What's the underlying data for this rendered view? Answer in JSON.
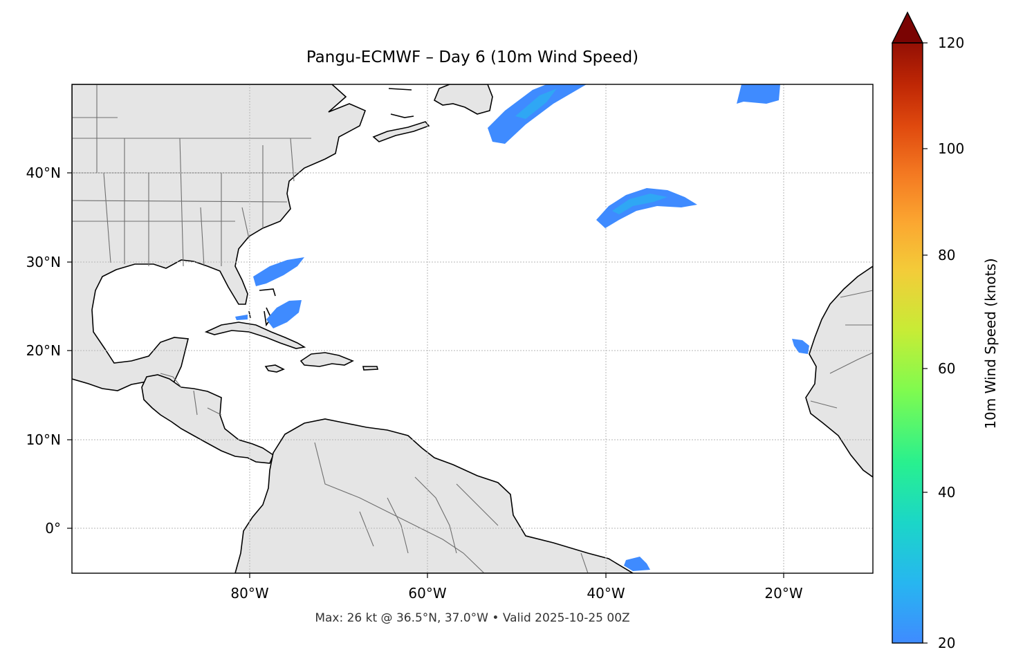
{
  "title": "Pangu-ECMWF – Day 6 (10m Wind Speed)",
  "footnote": "Max: 26 kt @ 36.5°N, 37.0°W • Valid 2025-10-25 00Z",
  "x_ticks": [
    "80°W",
    "60°W",
    "40°W",
    "20°W"
  ],
  "y_ticks": [
    "40°N",
    "30°N",
    "20°N",
    "10°N",
    "0°"
  ],
  "colorbar": {
    "label": "10m Wind Speed (knots)",
    "ticks": [
      "120",
      "100",
      "80",
      "60",
      "40",
      "20"
    ],
    "min": 20,
    "max": 120,
    "extend": "max",
    "colors": [
      "#3f8bff",
      "#27b6f0",
      "#1bd6c8",
      "#28f08f",
      "#7ffb4f",
      "#c7ec36",
      "#f3cc39",
      "#fba731",
      "#f47a22",
      "#e04a0f",
      "#bf2705",
      "#941005",
      "#7a0403"
    ]
  },
  "map": {
    "extent_lon": [
      -100,
      -10
    ],
    "extent_lat": [
      -5,
      50
    ],
    "land_color": "#e5e5e5",
    "ocean_color": "#ffffff",
    "wind_color": "#3f8bff",
    "wind_core_color": "#2fa7f4"
  }
}
